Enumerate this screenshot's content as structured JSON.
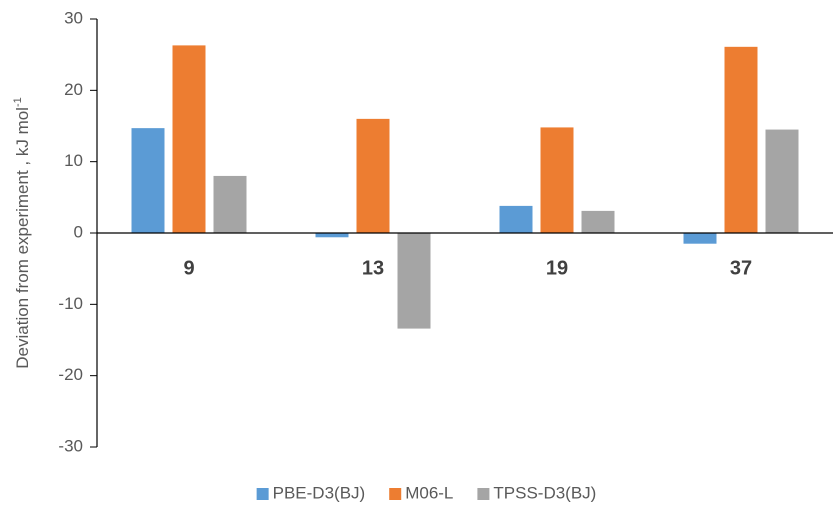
{
  "chart_data": {
    "type": "bar",
    "ylabel": "Deviation from experiment , kJ mol",
    "ylabel_superscript": "-1",
    "categories": [
      "9",
      "13",
      "19",
      "37"
    ],
    "series": [
      {
        "name": "PBE-D3(BJ)",
        "color": "#5b9bd5",
        "values": [
          14.7,
          -0.6,
          3.8,
          -1.5
        ]
      },
      {
        "name": "M06-L",
        "color": "#ed7d31",
        "values": [
          26.3,
          16.0,
          14.8,
          26.1
        ]
      },
      {
        "name": "TPSS-D3(BJ)",
        "color": "#a5a5a5",
        "values": [
          8.0,
          -13.4,
          3.1,
          14.5
        ]
      }
    ],
    "ylim": [
      -30,
      30
    ],
    "yticks": [
      -30,
      -20,
      -10,
      0,
      10,
      20,
      30
    ],
    "legend": "bottom"
  }
}
